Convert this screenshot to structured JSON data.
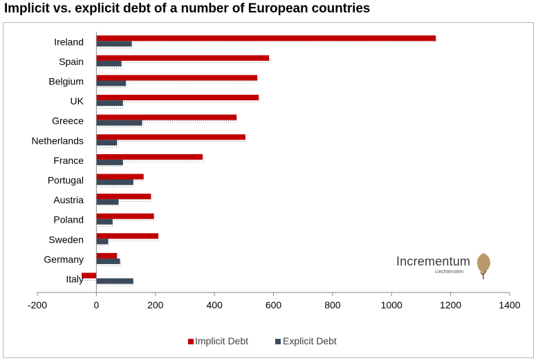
{
  "title": "Implicit vs. explicit debt of a number of European countries",
  "brand": {
    "name": "Incrementum",
    "sub": "Liechtenstein",
    "icon": "tree-icon"
  },
  "colors": {
    "implicit": "#c00000",
    "explicit": "#3b4a5a",
    "axis": "#888888"
  },
  "legend": {
    "placement": "bottom",
    "items": [
      "Implicit Debt",
      "Explicit Debt"
    ]
  },
  "chart_data": {
    "type": "bar",
    "orientation": "horizontal",
    "categories": [
      "Ireland",
      "Spain",
      "Belgium",
      "UK",
      "Greece",
      "Netherlands",
      "France",
      "Portugal",
      "Austria",
      "Poland",
      "Sweden",
      "Germany",
      "Italy"
    ],
    "series": [
      {
        "name": "Implicit Debt",
        "values": [
          1150,
          585,
          545,
          550,
          475,
          505,
          360,
          160,
          185,
          195,
          210,
          70,
          -50
        ]
      },
      {
        "name": "Explicit Debt",
        "values": [
          120,
          85,
          100,
          90,
          155,
          70,
          90,
          125,
          75,
          55,
          40,
          80,
          125
        ]
      }
    ],
    "xlim": [
      -200,
      1400
    ],
    "xticks": [
      -200,
      0,
      200,
      400,
      600,
      800,
      1000,
      1200,
      1400
    ],
    "xlabel": "",
    "ylabel": "",
    "grid": false
  }
}
